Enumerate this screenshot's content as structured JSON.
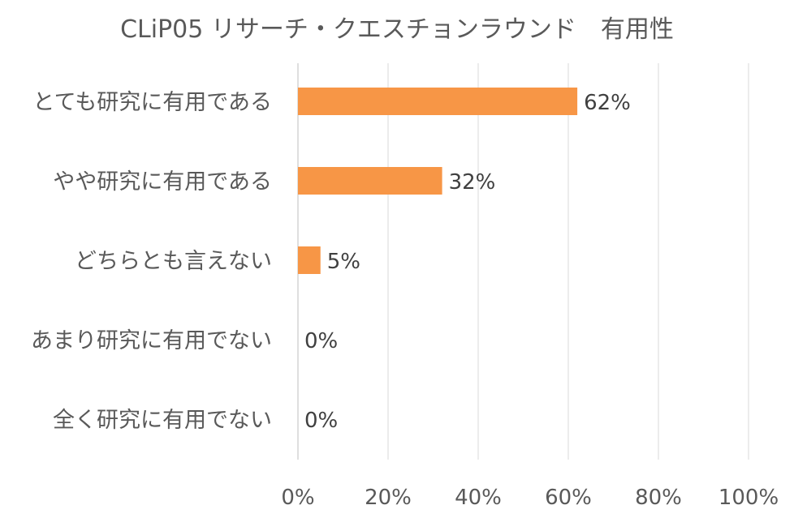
{
  "chart_data": {
    "type": "bar",
    "orientation": "horizontal",
    "title": "CLiP05 リサーチ・クエスチョンラウンド　有用性",
    "categories": [
      "とても研究に有用である",
      "やや研究に有用である",
      "どちらとも言えない",
      "あまり研究に有用でない",
      "全く研究に有用でない"
    ],
    "values": [
      62,
      32,
      5,
      0,
      0
    ],
    "data_labels": [
      "62%",
      "32%",
      "5%",
      "0%",
      "0%"
    ],
    "xlim": [
      0,
      100
    ],
    "x_ticks": [
      0,
      20,
      40,
      60,
      80,
      100
    ],
    "x_tick_labels": [
      "0%",
      "20%",
      "40%",
      "60%",
      "80%",
      "100%"
    ],
    "xlabel": "",
    "ylabel": "",
    "grid": true,
    "legend": "none",
    "colors": {
      "bar": "#f79646"
    }
  }
}
